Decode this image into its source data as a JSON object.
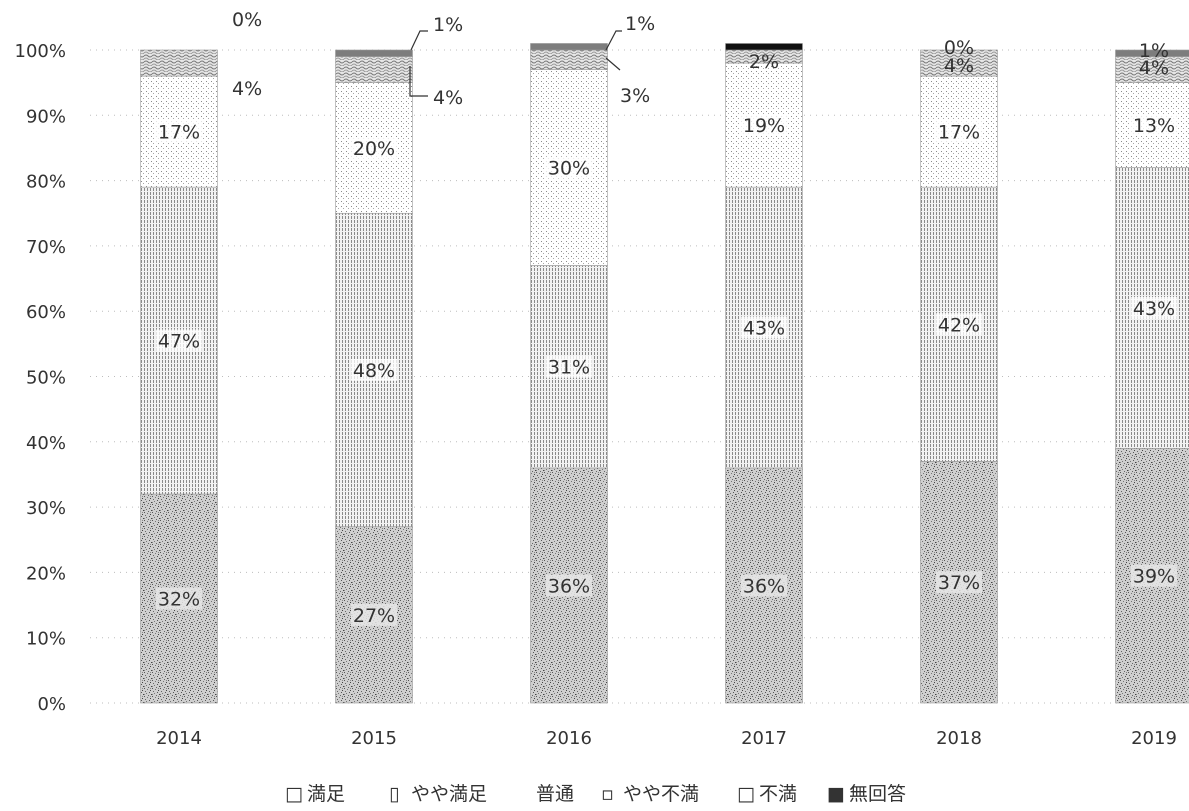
{
  "chart_data": {
    "type": "bar",
    "stacked": true,
    "orientation": "vertical",
    "categories": [
      "2014",
      "2015",
      "2016",
      "2017",
      "2018",
      "2019"
    ],
    "ylim": [
      0,
      100
    ],
    "yticks": [
      "0%",
      "10%",
      "20%",
      "30%",
      "40%",
      "50%",
      "60%",
      "70%",
      "80%",
      "90%",
      "100%"
    ],
    "grid": "horizontal dotted",
    "legend_position": "bottom",
    "series": [
      {
        "name": "満足",
        "legend_marker": "□",
        "pattern": "speckled-dense",
        "values": [
          32,
          27,
          36,
          36,
          37,
          39
        ],
        "labels": [
          "32%",
          "27%",
          "36%",
          "36%",
          "37%",
          "39%"
        ]
      },
      {
        "name": "やや満足",
        "legend_marker": "▯",
        "pattern": "vertical-hatch",
        "values": [
          47,
          48,
          31,
          43,
          42,
          43
        ],
        "labels": [
          "47%",
          "48%",
          "31%",
          "43%",
          "42%",
          "43%"
        ]
      },
      {
        "name": "普通",
        "legend_marker": "",
        "pattern": "light-dots",
        "values": [
          17,
          20,
          30,
          19,
          17,
          13
        ],
        "labels": [
          "17%",
          "20%",
          "30%",
          "19%",
          "17%",
          "13%"
        ]
      },
      {
        "name": "やや不満",
        "legend_marker": "▫",
        "pattern": "wavy",
        "values": [
          4,
          4,
          3,
          2,
          4,
          4
        ],
        "labels": [
          "4%",
          "4%",
          "3%",
          "2%",
          "4%",
          "4%"
        ]
      },
      {
        "name": "不満",
        "legend_marker": "□",
        "pattern": "gray-solid",
        "values": [
          0,
          1,
          1,
          0,
          0,
          1
        ],
        "labels": [
          "0%",
          "1%",
          "1%",
          "",
          "0%",
          "1%"
        ]
      },
      {
        "name": "無回答",
        "legend_marker": "■",
        "pattern": "black-solid",
        "values": [
          0,
          0,
          0,
          1,
          0,
          0
        ],
        "labels": [
          "",
          "",
          "",
          "",
          "",
          ""
        ]
      }
    ]
  }
}
